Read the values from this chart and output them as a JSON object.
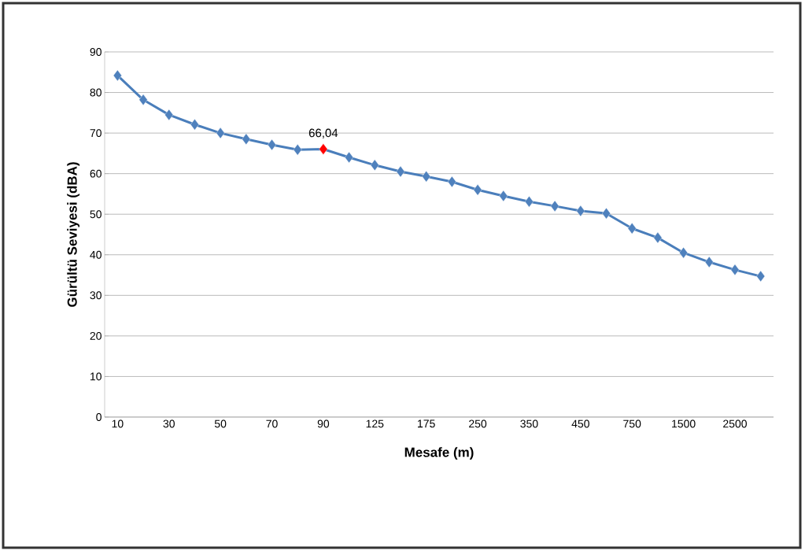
{
  "chart_data": {
    "type": "line",
    "xlabel": "Mesafe (m)",
    "ylabel": "Gürültü Seviyesi (dBA)",
    "categories": [
      "10",
      null,
      "30",
      null,
      "50",
      null,
      "70",
      null,
      "90",
      null,
      "125",
      null,
      "175",
      null,
      "250",
      null,
      "350",
      null,
      "450",
      null,
      "750",
      null,
      "1500",
      null,
      "2500",
      null
    ],
    "values": [
      84.2,
      78.2,
      74.5,
      72.1,
      70.0,
      68.5,
      67.1,
      65.9,
      66.04,
      64.0,
      62.1,
      60.5,
      59.3,
      58.0,
      56.0,
      54.5,
      53.1,
      52.0,
      50.8,
      50.2,
      46.5,
      44.2,
      40.5,
      38.2,
      36.3,
      34.7
    ],
    "colors": [
      "#4f81bd",
      "#4f81bd",
      "#4f81bd",
      "#4f81bd",
      "#4f81bd",
      "#4f81bd",
      "#4f81bd",
      "#4f81bd",
      "#ff0000",
      "#4f81bd",
      "#4f81bd",
      "#4f81bd",
      "#4f81bd",
      "#4f81bd",
      "#4f81bd",
      "#4f81bd",
      "#4f81bd",
      "#4f81bd",
      "#4f81bd",
      "#4f81bd",
      "#4f81bd",
      "#4f81bd",
      "#4f81bd",
      "#4f81bd",
      "#4f81bd",
      "#4f81bd"
    ],
    "color": "#4a7ebb",
    "value_labels": [
      null,
      null,
      null,
      null,
      null,
      null,
      null,
      null,
      "66,04",
      null,
      null,
      null,
      null,
      null,
      null,
      null,
      null,
      null,
      null,
      null,
      null,
      null,
      null,
      null,
      null,
      null
    ],
    "ylim": [
      0,
      90
    ],
    "yticks": [
      0,
      10,
      20,
      30,
      40,
      50,
      60,
      70,
      80,
      90
    ],
    "grid": "y",
    "marker": "diamond",
    "line_style": "solid"
  }
}
